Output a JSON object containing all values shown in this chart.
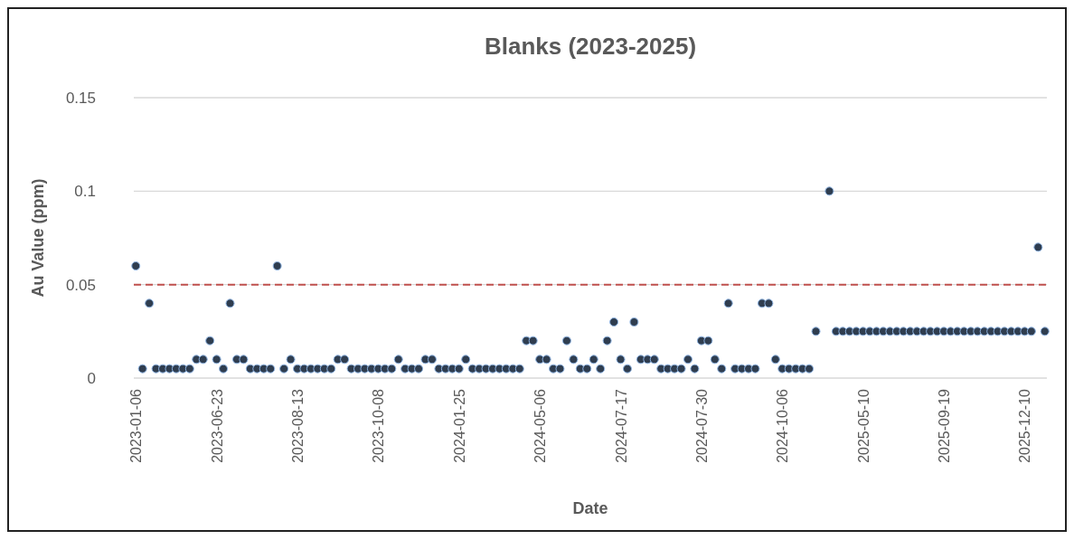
{
  "chart_data": {
    "type": "scatter",
    "title": "Blanks (2023-2025)",
    "xlabel": "Date",
    "ylabel": "Au Value (ppm)",
    "categories": [
      "2023-01-06",
      null,
      null,
      null,
      null,
      null,
      null,
      null,
      null,
      null,
      null,
      null,
      "2023-06-23",
      null,
      null,
      null,
      null,
      null,
      null,
      null,
      null,
      null,
      null,
      null,
      "2023-08-13",
      null,
      null,
      null,
      null,
      null,
      null,
      null,
      null,
      null,
      null,
      null,
      "2023-10-08",
      null,
      null,
      null,
      null,
      null,
      null,
      null,
      null,
      null,
      null,
      null,
      "2024-01-25",
      null,
      null,
      null,
      null,
      null,
      null,
      null,
      null,
      null,
      null,
      null,
      "2024-05-06",
      null,
      null,
      null,
      null,
      null,
      null,
      null,
      null,
      null,
      null,
      null,
      "2024-07-17",
      null,
      null,
      null,
      null,
      null,
      null,
      null,
      null,
      null,
      null,
      null,
      "2024-07-30",
      null,
      null,
      null,
      null,
      null,
      null,
      null,
      null,
      null,
      null,
      null,
      "2024-10-06",
      null,
      null,
      null,
      null,
      null,
      null,
      null,
      null,
      null,
      null,
      null,
      "2025-05-10",
      null,
      null,
      null,
      null,
      null,
      null,
      null,
      null,
      null,
      null,
      null,
      "2025-09-19",
      null,
      null,
      null,
      null,
      null,
      null,
      null,
      null,
      null,
      null,
      null,
      "2025-12-10",
      null,
      null,
      null
    ],
    "series": [
      {
        "color": "#2f3d4f",
        "values": [
          0.06,
          0.005,
          0.04,
          0.005,
          0.005,
          0.005,
          0.005,
          0.005,
          0.005,
          0.01,
          0.01,
          0.02,
          0.01,
          0.005,
          0.04,
          0.01,
          0.01,
          0.005,
          0.005,
          0.005,
          0.005,
          0.06,
          0.005,
          0.01,
          0.005,
          0.005,
          0.005,
          0.005,
          0.005,
          0.005,
          0.01,
          0.01,
          0.005,
          0.005,
          0.005,
          0.005,
          0.005,
          0.005,
          0.005,
          0.01,
          0.005,
          0.005,
          0.005,
          0.01,
          0.01,
          0.005,
          0.005,
          0.005,
          0.005,
          0.01,
          0.005,
          0.005,
          0.005,
          0.005,
          0.005,
          0.005,
          0.005,
          0.005,
          0.02,
          0.02,
          0.01,
          0.01,
          0.005,
          0.005,
          0.02,
          0.01,
          0.005,
          0.005,
          0.01,
          0.005,
          0.02,
          0.03,
          0.01,
          0.005,
          0.03,
          0.01,
          0.01,
          0.01,
          0.005,
          0.005,
          0.005,
          0.005,
          0.01,
          0.005,
          0.02,
          0.02,
          0.01,
          0.005,
          0.04,
          0.005,
          0.005,
          0.005,
          0.005,
          0.04,
          0.04,
          0.01,
          0.005,
          0.005,
          0.005,
          0.005,
          0.005,
          0.025,
          null,
          0.1,
          0.025,
          0.025,
          0.025,
          0.025,
          0.025,
          0.025,
          0.025,
          0.025,
          0.025,
          0.025,
          0.025,
          0.025,
          0.025,
          0.025,
          0.025,
          0.025,
          0.025,
          0.025,
          0.025,
          0.025,
          0.025,
          0.025,
          0.025,
          0.025,
          0.025,
          0.025,
          0.025,
          0.025,
          0.025,
          0.025,
          0.07,
          0.025
        ]
      }
    ],
    "ylim": [
      0,
      0.15
    ],
    "yticks": [
      0,
      0.05,
      0.1,
      0.15
    ],
    "grid": "y",
    "marker": "circle",
    "ref_lines": [
      {
        "axis": "y",
        "value": 0.05,
        "color": "#c0504d",
        "line_style": "dashed"
      }
    ]
  }
}
